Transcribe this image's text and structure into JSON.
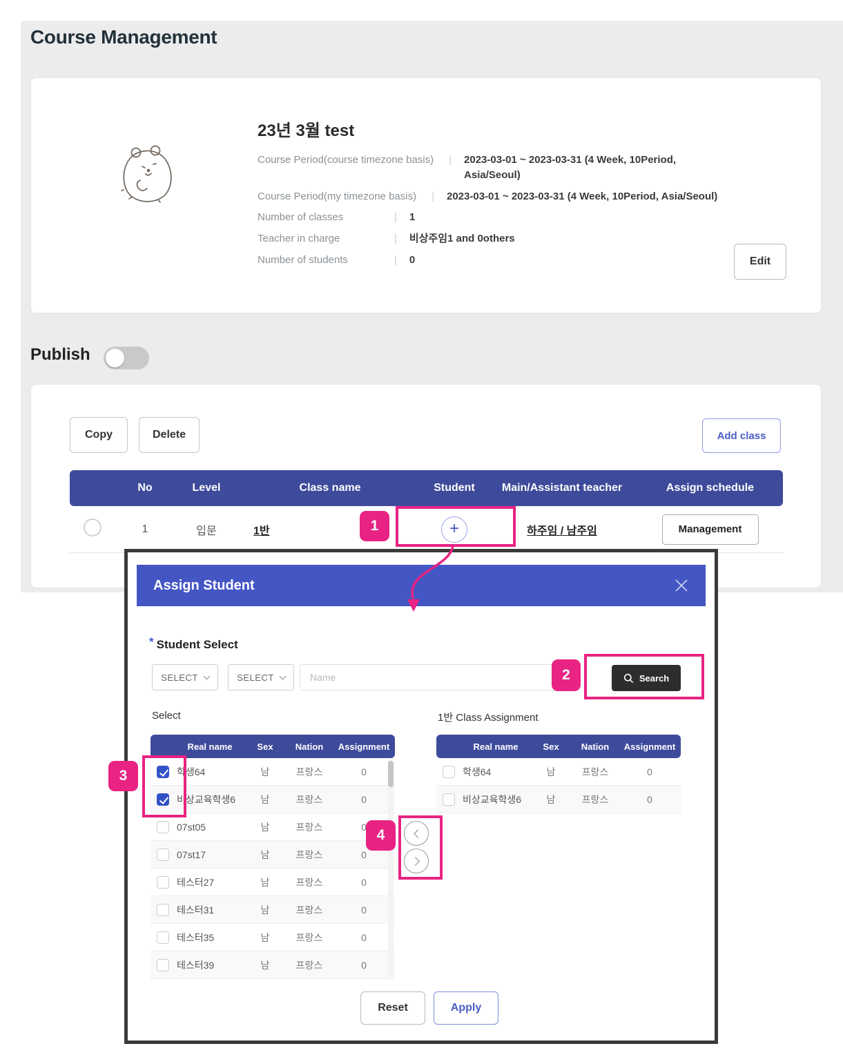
{
  "page": {
    "title": "Course Management"
  },
  "course_card": {
    "title": "23년 3월 test",
    "details": [
      {
        "label": "Course Period(course timezone basis)",
        "value": "2023-03-01 ~ 2023-03-31  (4 Week,  10Period,\nAsia/Seoul)"
      },
      {
        "label": "Course Period(my timezone basis)",
        "value": "2023-03-01 ~ 2023-03-31  (4 Week,  10Period,  Asia/Seoul)"
      },
      {
        "label": "Number of classes",
        "value": "1"
      },
      {
        "label": "Teacher in charge",
        "value": "비상주임1 and 0others"
      },
      {
        "label": "Number of students",
        "value": "0"
      }
    ],
    "edit_label": "Edit"
  },
  "publish": {
    "label": "Publish",
    "enabled": false
  },
  "class_section": {
    "copy_label": "Copy",
    "delete_label": "Delete",
    "add_class_label": "Add class",
    "columns": [
      "No",
      "Level",
      "Class name",
      "Student",
      "Main/Assistant teacher",
      "Assign schedule"
    ],
    "row": {
      "no": "1",
      "level": "입문",
      "class_name": "1반",
      "teachers": "하주임 / 남주임",
      "management_label": "Management"
    }
  },
  "callouts": {
    "one": "1",
    "two": "2",
    "three": "3",
    "four": "4"
  },
  "modal": {
    "title": "Assign Student",
    "required_mark": "*",
    "student_select_label": "Student Select",
    "select_placeholder": "SELECT",
    "name_placeholder": "Name",
    "search_label": "Search",
    "left_table": {
      "caption": "Select",
      "columns": [
        "Real name",
        "Sex",
        "Nation",
        "Assignment"
      ],
      "rows": [
        {
          "name": "학생64",
          "sex": "남",
          "nation": "프랑스",
          "assignment": "0",
          "checked": true
        },
        {
          "name": "비상교육학생6",
          "sex": "남",
          "nation": "프랑스",
          "assignment": "0",
          "checked": true
        },
        {
          "name": "07st05",
          "sex": "남",
          "nation": "프랑스",
          "assignment": "0",
          "checked": false
        },
        {
          "name": "07st17",
          "sex": "남",
          "nation": "프랑스",
          "assignment": "0",
          "checked": false
        },
        {
          "name": "테스터27",
          "sex": "남",
          "nation": "프랑스",
          "assignment": "0",
          "checked": false
        },
        {
          "name": "테스터31",
          "sex": "남",
          "nation": "프랑스",
          "assignment": "0",
          "checked": false
        },
        {
          "name": "테스터35",
          "sex": "남",
          "nation": "프랑스",
          "assignment": "0",
          "checked": false
        },
        {
          "name": "테스터39",
          "sex": "남",
          "nation": "프랑스",
          "assignment": "0",
          "checked": false
        }
      ]
    },
    "right_table": {
      "caption": "1반 Class Assignment",
      "columns": [
        "Real name",
        "Sex",
        "Nation",
        "Assignment"
      ],
      "rows": [
        {
          "name": "학생64",
          "sex": "남",
          "nation": "프랑스",
          "assignment": "0",
          "checked": false
        },
        {
          "name": "비상교육학생6",
          "sex": "남",
          "nation": "프랑스",
          "assignment": "0",
          "checked": false
        }
      ]
    },
    "reset_label": "Reset",
    "apply_label": "Apply"
  },
  "colors": {
    "accent_pink": "#e82383",
    "table_header_indigo": "#3e4b9b",
    "modal_header_blue": "#4456c4",
    "link_blue": "#4a5cc5",
    "search_button_dark": "#2d2d2d",
    "checkbox_checked_blue": "#3452c8",
    "page_background": "#ececec"
  }
}
